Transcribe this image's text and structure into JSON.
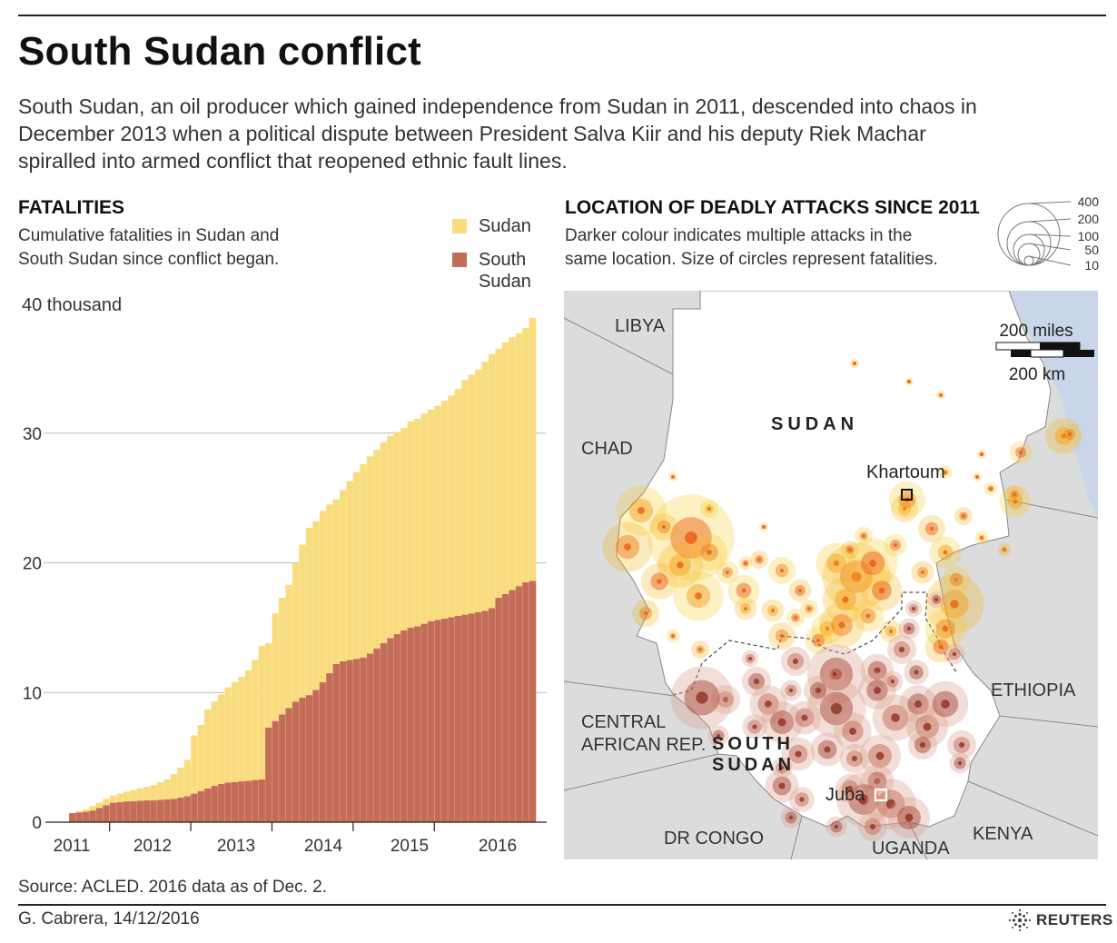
{
  "header": {
    "title": "South Sudan conflict",
    "intro": "South Sudan, an oil producer which gained independence from Sudan in 2011, descended into chaos in December 2013 when a political dispute between President Salva Kiir and his deputy Riek Machar spiralled into armed conflict that reopened ethnic fault lines."
  },
  "fatalities": {
    "title": "FATALITIES",
    "subtitle_line1": "Cumulative fatalities in Sudan and",
    "subtitle_line2": "South Sudan since conflict began.",
    "legend": {
      "sudan": "Sudan",
      "south_line1": "South",
      "south_line2": "Sudan"
    },
    "y_unit_label": "40 thousand"
  },
  "colors": {
    "sudan": "#f9dc7e",
    "south_sudan": "#c46c57",
    "map_land": "#ffffff",
    "map_neighbors": "#dcdcdc",
    "water": "#c9d6ea"
  },
  "chart_data": {
    "type": "bar",
    "stacked": true,
    "ylim": [
      0,
      40
    ],
    "yticks": [
      0,
      10,
      20,
      30
    ],
    "year_labels": [
      "2011",
      "2012",
      "2013",
      "2014",
      "2015",
      "2016"
    ],
    "x_start": "2011-07",
    "interval": "month",
    "series": [
      {
        "name": "South Sudan",
        "values": [
          0.7,
          0.75,
          0.8,
          0.9,
          1.1,
          1.3,
          1.5,
          1.55,
          1.6,
          1.62,
          1.65,
          1.68,
          1.7,
          1.72,
          1.75,
          1.8,
          1.9,
          2.0,
          2.2,
          2.4,
          2.6,
          2.8,
          2.95,
          3.05,
          3.1,
          3.15,
          3.2,
          3.25,
          3.3,
          7.3,
          7.8,
          8.3,
          8.8,
          9.3,
          9.6,
          9.8,
          10.2,
          10.8,
          11.5,
          12.2,
          12.4,
          12.5,
          12.6,
          12.7,
          13.0,
          13.4,
          13.8,
          14.2,
          14.5,
          14.8,
          15.0,
          15.1,
          15.3,
          15.5,
          15.6,
          15.7,
          15.8,
          15.9,
          16.0,
          16.1,
          16.2,
          16.3,
          16.5,
          17.3,
          17.6,
          17.9,
          18.2,
          18.5,
          18.6
        ]
      },
      {
        "name": "Sudan",
        "values": [
          0,
          0.1,
          0.2,
          0.35,
          0.4,
          0.5,
          0.55,
          0.65,
          0.75,
          0.85,
          0.95,
          1.05,
          1.15,
          1.35,
          1.55,
          1.9,
          2.3,
          2.8,
          4.5,
          5.1,
          6.1,
          6.5,
          6.9,
          7.35,
          7.7,
          8.05,
          8.5,
          9.25,
          10.3,
          6.5,
          8.3,
          9.0,
          9.5,
          10.7,
          11.8,
          12.9,
          13.0,
          13.2,
          13.0,
          12.7,
          13.2,
          13.8,
          14.4,
          14.9,
          15.2,
          15.3,
          15.5,
          15.6,
          15.6,
          15.6,
          15.9,
          16.0,
          16.2,
          16.3,
          16.5,
          16.8,
          17.1,
          17.5,
          18.1,
          18.4,
          18.7,
          19.2,
          19.6,
          19.2,
          19.4,
          19.5,
          19.5,
          19.6,
          20.3
        ]
      }
    ]
  },
  "map": {
    "title": "LOCATION OF DEADLY ATTACKS SINCE 2011",
    "subtitle_line1": "Darker colour indicates multiple attacks in the",
    "subtitle_line2": "same location. Size of circles represent fatalities.",
    "size_legend": [
      400,
      200,
      100,
      50,
      10
    ],
    "scale_miles": "200 miles",
    "scale_km": "200 km",
    "labels": {
      "libya": "LIBYA",
      "chad": "CHAD",
      "sudan": "SUDAN",
      "khartoum": "Khartoum",
      "ethiopia": "ETHIOPIA",
      "car_line1": "CENTRAL",
      "car_line2": "AFRICAN REP.",
      "south_line1": "SOUTH",
      "south_line2": "SUDAN",
      "juba": "Juba",
      "dr_congo": "DR CONGO",
      "uganda": "UGANDA",
      "kenya": "KENYA"
    }
  },
  "footer": {
    "source": "Source: ACLED. 2016 data as of Dec. 2.",
    "credit": "G. Cabrera,  14/12/2016",
    "brand": "REUTERS"
  }
}
